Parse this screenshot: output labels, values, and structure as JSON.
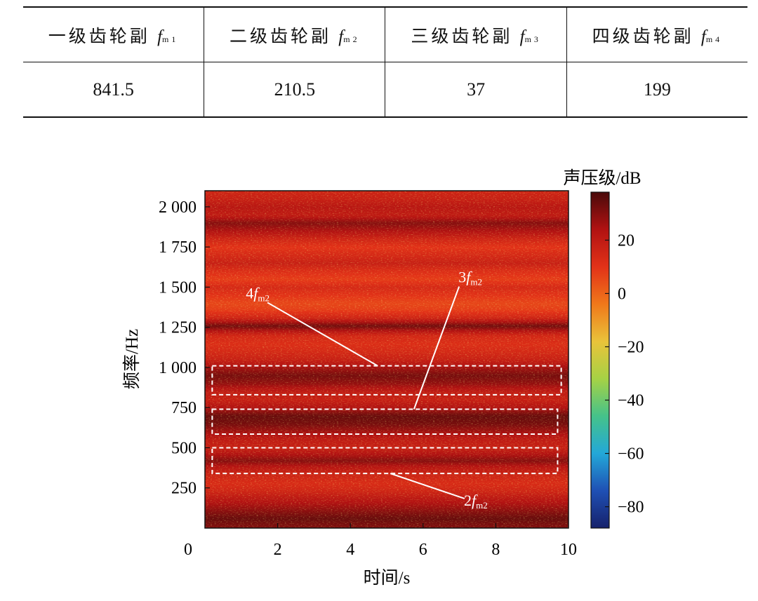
{
  "table": {
    "headers": [
      {
        "text": "一级齿轮副",
        "sym": "f",
        "sub": "m1"
      },
      {
        "text": "二级齿轮副",
        "sym": "f",
        "sub": "m2"
      },
      {
        "text": "三级齿轮副",
        "sym": "f",
        "sub": "m3"
      },
      {
        "text": "四级齿轮副",
        "sym": "f",
        "sub": "m4"
      }
    ],
    "values": [
      "841.5",
      "210.5",
      "37",
      "199"
    ]
  },
  "chart_data": {
    "type": "heatmap",
    "title": "",
    "xlabel": "时间/s",
    "ylabel": "频率/Hz",
    "xlim": [
      0,
      10
    ],
    "ylim": [
      0,
      2100
    ],
    "xticks": [
      {
        "value": 0,
        "label": "0"
      },
      {
        "value": 2,
        "label": "2"
      },
      {
        "value": 4,
        "label": "4"
      },
      {
        "value": 6,
        "label": "6"
      },
      {
        "value": 8,
        "label": "8"
      },
      {
        "value": 10,
        "label": "10"
      }
    ],
    "yticks": [
      {
        "value": 250,
        "label": "250"
      },
      {
        "value": 500,
        "label": "500"
      },
      {
        "value": 750,
        "label": "750"
      },
      {
        "value": 1000,
        "label": "1 000"
      },
      {
        "value": 1250,
        "label": "1 250"
      },
      {
        "value": 1500,
        "label": "1 500"
      },
      {
        "value": 1750,
        "label": "1 750"
      },
      {
        "value": 2000,
        "label": "2 000"
      }
    ],
    "colorbar": {
      "label": "声压级/dB",
      "range": [
        -88,
        38
      ],
      "ticks": [
        {
          "value": 20,
          "label": "20"
        },
        {
          "value": 0,
          "label": "0"
        },
        {
          "value": -20,
          "label": "−20"
        },
        {
          "value": -40,
          "label": "−40"
        },
        {
          "value": -60,
          "label": "−60"
        },
        {
          "value": -80,
          "label": "−80"
        }
      ],
      "colors": [
        "#4a0a0a",
        "#b11212",
        "#e23218",
        "#f0781a",
        "#e9c33a",
        "#a6d245",
        "#45c28a",
        "#23a8d8",
        "#1f50b4",
        "#16216b"
      ]
    },
    "band_profile": [
      {
        "f": 0,
        "level": 30
      },
      {
        "f": 60,
        "level": 34
      },
      {
        "f": 120,
        "level": 28
      },
      {
        "f": 180,
        "level": 22
      },
      {
        "f": 230,
        "level": 16
      },
      {
        "f": 280,
        "level": 13
      },
      {
        "f": 330,
        "level": 16
      },
      {
        "f": 380,
        "level": 22
      },
      {
        "f": 420,
        "level": 30
      },
      {
        "f": 460,
        "level": 24
      },
      {
        "f": 500,
        "level": 18
      },
      {
        "f": 550,
        "level": 20
      },
      {
        "f": 600,
        "level": 26
      },
      {
        "f": 650,
        "level": 32
      },
      {
        "f": 700,
        "level": 34
      },
      {
        "f": 750,
        "level": 24
      },
      {
        "f": 800,
        "level": 18
      },
      {
        "f": 850,
        "level": 20
      },
      {
        "f": 900,
        "level": 28
      },
      {
        "f": 950,
        "level": 32
      },
      {
        "f": 1000,
        "level": 26
      },
      {
        "f": 1050,
        "level": 18
      },
      {
        "f": 1100,
        "level": 14
      },
      {
        "f": 1150,
        "level": 12
      },
      {
        "f": 1200,
        "level": 15
      },
      {
        "f": 1260,
        "level": 33
      },
      {
        "f": 1310,
        "level": 16
      },
      {
        "f": 1360,
        "level": 8
      },
      {
        "f": 1400,
        "level": 6
      },
      {
        "f": 1450,
        "level": 10
      },
      {
        "f": 1500,
        "level": 14
      },
      {
        "f": 1550,
        "level": 8
      },
      {
        "f": 1600,
        "level": 12
      },
      {
        "f": 1650,
        "level": 18
      },
      {
        "f": 1700,
        "level": 14
      },
      {
        "f": 1750,
        "level": 10
      },
      {
        "f": 1800,
        "level": 16
      },
      {
        "f": 1850,
        "level": 24
      },
      {
        "f": 1900,
        "level": 30
      },
      {
        "f": 1950,
        "level": 20
      },
      {
        "f": 2000,
        "level": 22
      },
      {
        "f": 2050,
        "level": 18
      },
      {
        "f": 2100,
        "level": 16
      }
    ],
    "highlight_boxes": [
      {
        "t0": 0.2,
        "t1": 9.8,
        "f0": 830,
        "f1": 1010
      },
      {
        "t0": 0.2,
        "t1": 9.7,
        "f0": 585,
        "f1": 740
      },
      {
        "t0": 0.2,
        "t1": 9.7,
        "f0": 340,
        "f1": 500
      }
    ],
    "annotations": [
      {
        "num": "4",
        "sym": "f",
        "sub": "m2",
        "label_t": 1.45,
        "label_f": 1430,
        "tip_t": 4.75,
        "tip_f": 1010
      },
      {
        "num": "3",
        "sym": "f",
        "sub": "m2",
        "label_t": 7.3,
        "label_f": 1530,
        "tip_t": 5.75,
        "tip_f": 740
      },
      {
        "num": "2",
        "sym": "f",
        "sub": "m2",
        "label_t": 7.45,
        "label_f": 140,
        "tip_t": 5.1,
        "tip_f": 340
      }
    ]
  }
}
